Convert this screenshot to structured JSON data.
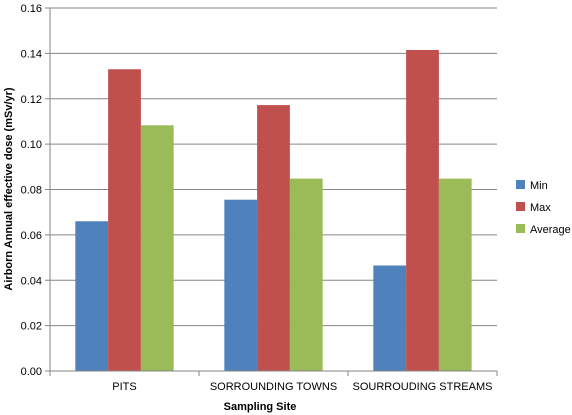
{
  "chart_data": {
    "type": "bar",
    "categories": [
      "PITS",
      "SORROUNDING TOWNS",
      "SOURROUDING STREAMS"
    ],
    "series": [
      {
        "name": "Min",
        "color": "#4F81BD",
        "values": [
          0.066,
          0.0755,
          0.0465
        ]
      },
      {
        "name": "Max",
        "color": "#C0504D",
        "values": [
          0.133,
          0.1172,
          0.1415
        ]
      },
      {
        "name": "Average",
        "color": "#9BBB59",
        "values": [
          0.1083,
          0.0848,
          0.0848
        ]
      }
    ],
    "title": "",
    "xlabel": "Sampling Site",
    "ylabel": "Airborn Annual effective dose  (mSv/yr)",
    "ylim": [
      0,
      0.16
    ],
    "yticks": [
      "0.00",
      "0.02",
      "0.04",
      "0.06",
      "0.08",
      "0.10",
      "0.12",
      "0.14",
      "0.16"
    ],
    "grid": true,
    "legend_position": "right"
  }
}
